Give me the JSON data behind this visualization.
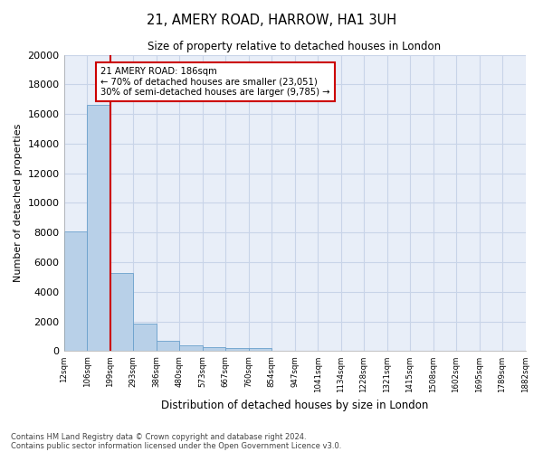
{
  "title_line1": "21, AMERY ROAD, HARROW, HA1 3UH",
  "title_line2": "Size of property relative to detached houses in London",
  "xlabel": "Distribution of detached houses by size in London",
  "ylabel": "Number of detached properties",
  "bar_values": [
    8100,
    16600,
    5300,
    1850,
    700,
    370,
    280,
    220,
    180,
    0,
    0,
    0,
    0,
    0,
    0,
    0,
    0,
    0,
    0,
    0
  ],
  "bin_labels": [
    "12sqm",
    "106sqm",
    "199sqm",
    "293sqm",
    "386sqm",
    "480sqm",
    "573sqm",
    "667sqm",
    "760sqm",
    "854sqm",
    "947sqm",
    "1041sqm",
    "1134sqm",
    "1228sqm",
    "1321sqm",
    "1415sqm",
    "1508sqm",
    "1602sqm",
    "1695sqm",
    "1789sqm",
    "1882sqm"
  ],
  "bar_color": "#b8d0e8",
  "bar_edge_color": "#6aa0cc",
  "property_line_color": "#cc0000",
  "annotation_text": "21 AMERY ROAD: 186sqm\n← 70% of detached houses are smaller (23,051)\n30% of semi-detached houses are larger (9,785) →",
  "annotation_box_color": "white",
  "annotation_box_edge_color": "#cc0000",
  "ylim": [
    0,
    20000
  ],
  "yticks": [
    0,
    2000,
    4000,
    6000,
    8000,
    10000,
    12000,
    14000,
    16000,
    18000,
    20000
  ],
  "grid_color": "#c8d4e8",
  "background_color": "#e8eef8",
  "footer_line1": "Contains HM Land Registry data © Crown copyright and database right 2024.",
  "footer_line2": "Contains public sector information licensed under the Open Government Licence v3.0."
}
